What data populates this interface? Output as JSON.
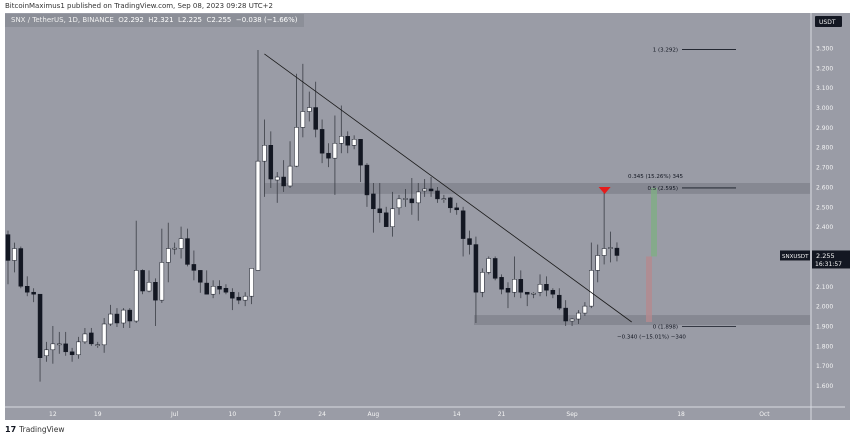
{
  "publisher_line": "BitcoinMaximus1 published on TradingView.com, Sep 08, 2023 09:28 UTC+2",
  "legend": {
    "symbol": "SNX / TetherUS, 1D, BINANCE",
    "o_label": "O",
    "o": "2.292",
    "h_label": "H",
    "h": "2.321",
    "l_label": "L",
    "l": "2.225",
    "c_label": "C",
    "c": "2.255",
    "change": "−0.038 (−1.66%)"
  },
  "footer": {
    "logo": "17",
    "brand": "TradingView"
  },
  "colors": {
    "bg": "#9a9ca6",
    "up": "#ffffff",
    "down": "#131722",
    "zone": "#7f828b",
    "arrow": "#e51c1c",
    "green": "#7fae84",
    "red": "#b48a8e"
  },
  "chart_data": {
    "type": "candlestick",
    "title": "SNX / TetherUS, 1D, BINANCE",
    "currency_badge": "USDT",
    "ylim": [
      1.492,
      3.476
    ],
    "start_date": "Jun 05, 2023",
    "yticks": [
      "1.500",
      "1.600",
      "1.700",
      "1.800",
      "1.900",
      "2.000",
      "2.100",
      "2.200",
      "2.300",
      "2.400",
      "2.500",
      "2.600",
      "2.700",
      "2.800",
      "2.900",
      "3.000",
      "3.100",
      "3.200",
      "3.300",
      "3.400"
    ],
    "xticks": [
      {
        "i": 7,
        "label": "12"
      },
      {
        "i": 14,
        "label": "19"
      },
      {
        "i": 26,
        "label": "Jul"
      },
      {
        "i": 35,
        "label": "10"
      },
      {
        "i": 42,
        "label": "17"
      },
      {
        "i": 49,
        "label": "24"
      },
      {
        "i": 57,
        "label": "Aug"
      },
      {
        "i": 70,
        "label": "14"
      },
      {
        "i": 77,
        "label": "21"
      },
      {
        "i": 88,
        "label": "Sep"
      },
      {
        "i": 105,
        "label": "18"
      },
      {
        "i": 118,
        "label": "Oct"
      }
    ],
    "ohlc": [
      [
        2.36,
        2.38,
        2.11,
        2.23
      ],
      [
        2.23,
        2.32,
        2.17,
        2.29
      ],
      [
        2.29,
        2.3,
        2.09,
        2.1
      ],
      [
        2.1,
        2.15,
        2.05,
        2.07
      ],
      [
        2.07,
        2.09,
        2.02,
        2.06
      ],
      [
        2.06,
        2.06,
        1.62,
        1.74
      ],
      [
        1.75,
        1.82,
        1.72,
        1.78
      ],
      [
        1.78,
        1.9,
        1.71,
        1.81
      ],
      [
        1.81,
        1.87,
        1.76,
        1.81
      ],
      [
        1.81,
        1.87,
        1.75,
        1.77
      ],
      [
        1.77,
        1.79,
        1.72,
        1.755
      ],
      [
        1.755,
        1.845,
        1.735,
        1.82
      ],
      [
        1.82,
        1.89,
        1.81,
        1.86
      ],
      [
        1.865,
        1.89,
        1.8,
        1.81
      ],
      [
        1.805,
        1.82,
        1.79,
        1.806
      ],
      [
        1.805,
        1.94,
        1.765,
        1.91
      ],
      [
        1.91,
        2.006,
        1.9,
        1.96
      ],
      [
        1.96,
        1.99,
        1.895,
        1.915
      ],
      [
        1.915,
        1.99,
        1.89,
        1.98
      ],
      [
        1.98,
        1.99,
        1.89,
        1.925
      ],
      [
        1.925,
        2.43,
        1.915,
        2.18
      ],
      [
        2.18,
        2.185,
        2.06,
        2.076
      ],
      [
        2.076,
        2.18,
        2.07,
        2.12
      ],
      [
        2.12,
        2.14,
        1.9,
        2.03
      ],
      [
        2.03,
        2.39,
        2.016,
        2.22
      ],
      [
        2.22,
        2.42,
        2.12,
        2.29
      ],
      [
        2.29,
        2.32,
        2.26,
        2.292
      ],
      [
        2.29,
        2.4,
        2.24,
        2.34
      ],
      [
        2.34,
        2.39,
        2.2,
        2.21
      ],
      [
        2.21,
        2.28,
        2.13,
        2.18
      ],
      [
        2.18,
        2.18,
        2.067,
        2.12
      ],
      [
        2.116,
        2.18,
        2.06,
        2.06
      ],
      [
        2.06,
        2.13,
        2.04,
        2.1
      ],
      [
        2.1,
        2.13,
        2.06,
        2.085
      ],
      [
        2.09,
        2.11,
        2.06,
        2.07
      ],
      [
        2.07,
        2.09,
        1.98,
        2.04
      ],
      [
        2.045,
        2.07,
        2.01,
        2.03
      ],
      [
        2.03,
        2.07,
        2.0,
        2.05
      ],
      [
        2.05,
        2.19,
        2.01,
        2.19
      ],
      [
        2.18,
        3.29,
        2.18,
        2.73
      ],
      [
        2.73,
        2.94,
        2.55,
        2.81
      ],
      [
        2.81,
        2.88,
        2.595,
        2.64
      ],
      [
        2.635,
        2.675,
        2.52,
        2.65
      ],
      [
        2.65,
        2.735,
        2.575,
        2.605
      ],
      [
        2.605,
        2.83,
        2.595,
        2.705
      ],
      [
        2.705,
        3.17,
        2.7,
        2.9
      ],
      [
        2.9,
        3.22,
        2.85,
        2.98
      ],
      [
        2.98,
        3.08,
        2.93,
        3.0
      ],
      [
        3.0,
        3.13,
        2.85,
        2.89
      ],
      [
        2.89,
        2.94,
        2.72,
        2.77
      ],
      [
        2.77,
        2.82,
        2.7,
        2.745
      ],
      [
        2.745,
        2.96,
        2.56,
        2.82
      ],
      [
        2.82,
        3.01,
        2.77,
        2.855
      ],
      [
        2.855,
        2.88,
        2.77,
        2.81
      ],
      [
        2.81,
        2.86,
        2.79,
        2.84
      ],
      [
        2.84,
        2.84,
        2.625,
        2.71
      ],
      [
        2.71,
        2.72,
        2.5,
        2.56
      ],
      [
        2.565,
        2.62,
        2.37,
        2.49
      ],
      [
        2.49,
        2.62,
        2.42,
        2.47
      ],
      [
        2.47,
        2.5,
        2.4,
        2.4
      ],
      [
        2.4,
        2.575,
        2.35,
        2.49
      ],
      [
        2.495,
        2.56,
        2.46,
        2.54
      ],
      [
        2.54,
        2.59,
        2.5,
        2.542
      ],
      [
        2.54,
        2.645,
        2.46,
        2.52
      ],
      [
        2.52,
        2.62,
        2.43,
        2.575
      ],
      [
        2.58,
        2.64,
        2.55,
        2.59
      ],
      [
        2.59,
        2.65,
        2.55,
        2.58
      ],
      [
        2.58,
        2.6,
        2.52,
        2.54
      ],
      [
        2.54,
        2.56,
        2.52,
        2.541
      ],
      [
        2.545,
        2.55,
        2.47,
        2.495
      ],
      [
        2.495,
        2.52,
        2.46,
        2.485
      ],
      [
        2.48,
        2.5,
        2.25,
        2.34
      ],
      [
        2.34,
        2.38,
        2.26,
        2.31
      ],
      [
        2.31,
        2.35,
        1.915,
        2.07
      ],
      [
        2.07,
        2.19,
        2.045,
        2.17
      ],
      [
        2.17,
        2.25,
        2.16,
        2.24
      ],
      [
        2.24,
        2.25,
        2.13,
        2.14
      ],
      [
        2.145,
        2.16,
        2.06,
        2.085
      ],
      [
        2.09,
        2.12,
        1.99,
        2.07
      ],
      [
        2.07,
        2.25,
        2.045,
        2.135
      ],
      [
        2.135,
        2.18,
        2.04,
        2.07
      ],
      [
        2.07,
        2.07,
        2.0,
        2.06
      ],
      [
        2.06,
        2.07,
        2.04,
        2.065
      ],
      [
        2.07,
        2.16,
        2.05,
        2.11
      ],
      [
        2.11,
        2.15,
        2.05,
        2.08
      ],
      [
        2.08,
        2.09,
        2.04,
        2.06
      ],
      [
        2.055,
        2.09,
        1.98,
        1.99
      ],
      [
        1.99,
        2.03,
        1.9,
        1.925
      ],
      [
        1.925,
        1.94,
        1.9,
        1.935
      ],
      [
        1.935,
        1.98,
        1.91,
        1.965
      ],
      [
        1.965,
        2.02,
        1.95,
        2.0
      ],
      [
        2.0,
        2.32,
        1.99,
        2.18
      ],
      [
        2.18,
        2.31,
        2.12,
        2.255
      ],
      [
        2.255,
        2.57,
        2.21,
        2.29
      ],
      [
        2.29,
        2.375,
        2.22,
        2.295
      ],
      [
        2.292,
        2.321,
        2.225,
        2.255
      ]
    ],
    "zones": [
      {
        "name": "resistance",
        "from": 2.565,
        "to": 2.62,
        "start_i": 40
      },
      {
        "name": "support",
        "from": 1.905,
        "to": 1.955,
        "start_i": 72.7
      }
    ],
    "trendline": {
      "i1": 40,
      "p1": 3.27,
      "i2": 97.3,
      "p2": 1.92
    },
    "fib": [
      {
        "label": "1 (3.292)",
        "price": 3.292
      },
      {
        "label": "0.5 (2.595)",
        "price": 2.595
      },
      {
        "label": "0 (1.898)",
        "price": 1.898
      }
    ],
    "measure": {
      "up_label": "0.345 (15.26%) 345",
      "down_label": "−0.340 (−15.01%) −340",
      "mid": 2.25,
      "top": 2.595,
      "bottom": 1.92
    },
    "arrow_at": {
      "i": 93,
      "price": 2.595
    },
    "last_price": {
      "symbol": "SNXUSDT",
      "value": "2.255",
      "countdown": "16:31:57",
      "price": 2.255
    }
  }
}
